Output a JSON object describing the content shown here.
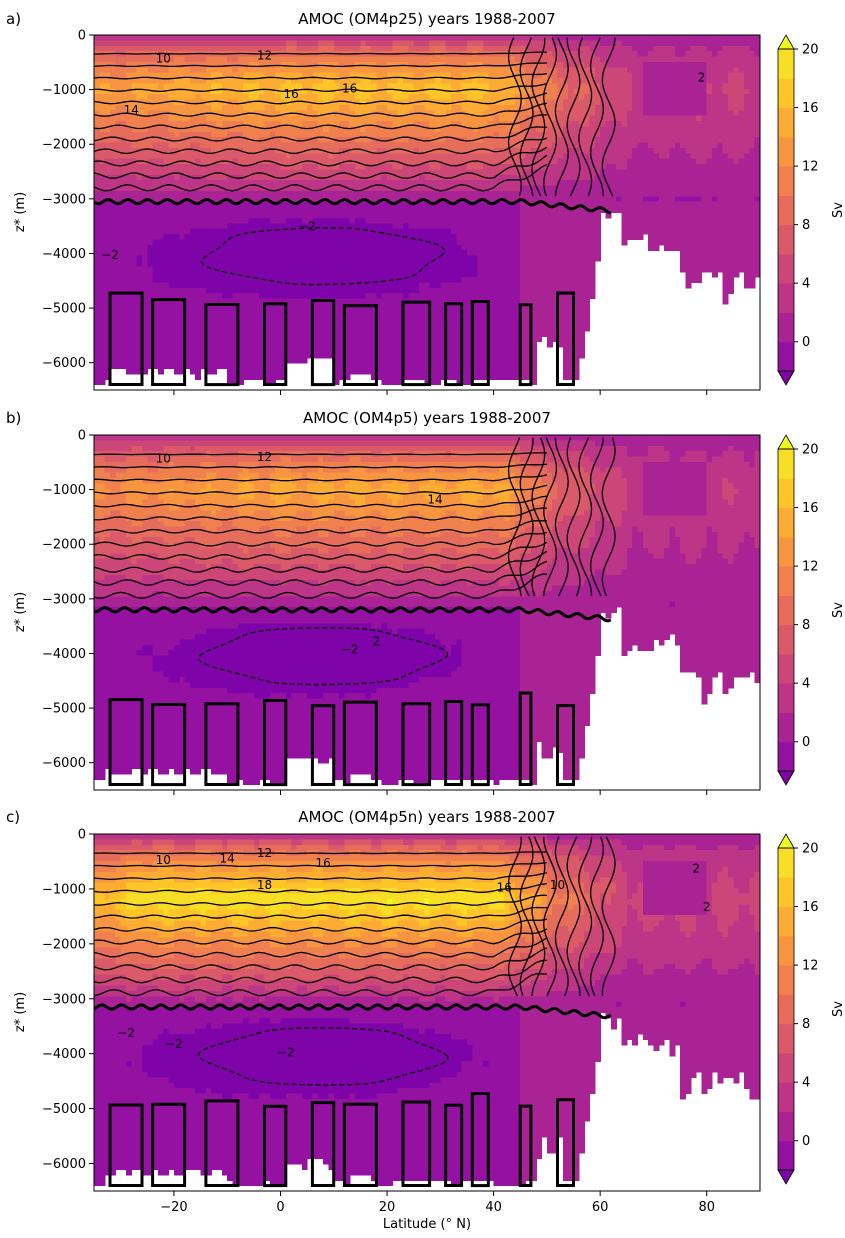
{
  "figure": {
    "colormap": [
      "#7e03a8",
      "#9511a1",
      "#aa2395",
      "#bc3587",
      "#cc4778",
      "#da5a6a",
      "#e66c5c",
      "#f0804e",
      "#f89540",
      "#fdac33",
      "#fdc527",
      "#f8df25",
      "#f0f921"
    ],
    "levels": [
      -2,
      0,
      2,
      4,
      6,
      8,
      10,
      12,
      14,
      16,
      18,
      20
    ],
    "colorbar": {
      "label": "Sv",
      "ticks": [
        "0",
        "4",
        "8",
        "12",
        "16",
        "20"
      ],
      "tick_values": [
        0,
        4,
        8,
        12,
        16,
        20
      ]
    }
  },
  "chart_data": [
    {
      "type": "heatmap",
      "panel": "a)",
      "title": "AMOC (OM4p25) years 1988-2007",
      "xlabel": "",
      "ylabel": "z* (m)",
      "xlim": [
        -35,
        90
      ],
      "ylim": [
        -6500,
        0
      ],
      "xticks": [
        -20,
        0,
        20,
        40,
        60,
        80
      ],
      "yticks": [
        0,
        -1000,
        -2000,
        -3000,
        -4000,
        -5000,
        -6000
      ],
      "ytick_labels": [
        "0",
        "−1000",
        "−2000",
        "−3000",
        "−4000",
        "−5000",
        "−6000"
      ],
      "core": {
        "max_sv": 17,
        "lat": [
          0,
          40
        ],
        "depth": -1000
      },
      "nadw_base_depth": -3050,
      "aabw_min_sv": -3,
      "contour_labels": [
        {
          "text": "10",
          "x": -22,
          "y": -500
        },
        {
          "text": "12",
          "x": -3,
          "y": -450
        },
        {
          "text": "14",
          "x": -28,
          "y": -1450
        },
        {
          "text": "16",
          "x": 2,
          "y": -1150
        },
        {
          "text": "16",
          "x": 13,
          "y": -1050
        },
        {
          "text": "−2",
          "x": -32,
          "y": -4100
        },
        {
          "text": "−2",
          "x": 5,
          "y": -3580
        },
        {
          "text": "2",
          "x": 79,
          "y": -850
        }
      ]
    },
    {
      "type": "heatmap",
      "panel": "b)",
      "title": "AMOC (OM4p5) years 1988-2007",
      "xlabel": "",
      "ylabel": "z* (m)",
      "xlim": [
        -35,
        90
      ],
      "ylim": [
        -6500,
        0
      ],
      "xticks": [
        -20,
        0,
        20,
        40,
        60,
        80
      ],
      "yticks": [
        0,
        -1000,
        -2000,
        -3000,
        -4000,
        -5000,
        -6000
      ],
      "ytick_labels": [
        "0",
        "−1000",
        "−2000",
        "−3000",
        "−4000",
        "−5000",
        "−6000"
      ],
      "core": {
        "max_sv": 15,
        "lat": [
          0,
          42
        ],
        "depth": -1000
      },
      "nadw_base_depth": -3200,
      "aabw_min_sv": -2.5,
      "contour_labels": [
        {
          "text": "10",
          "x": -22,
          "y": -500
        },
        {
          "text": "12",
          "x": -3,
          "y": -480
        },
        {
          "text": "14",
          "x": 29,
          "y": -1250
        },
        {
          "text": "−2",
          "x": 13,
          "y": -4000
        },
        {
          "text": "2",
          "x": 18,
          "y": -3850
        }
      ]
    },
    {
      "type": "heatmap",
      "panel": "c)",
      "title": "AMOC (OM4p5n) years 1988-2007",
      "xlabel": "Latitude (° N)",
      "ylabel": "z* (m)",
      "xlim": [
        -35,
        90
      ],
      "ylim": [
        -6500,
        0
      ],
      "xticks": [
        -20,
        0,
        20,
        40,
        60,
        80
      ],
      "yticks": [
        0,
        -1000,
        -2000,
        -3000,
        -4000,
        -5000,
        -6000
      ],
      "ytick_labels": [
        "0",
        "−1000",
        "−2000",
        "−3000",
        "−4000",
        "−5000",
        "−6000"
      ],
      "core": {
        "max_sv": 19.5,
        "lat": [
          -25,
          40
        ],
        "depth": -1200
      },
      "nadw_base_depth": -3150,
      "aabw_min_sv": -3,
      "contour_labels": [
        {
          "text": "10",
          "x": -22,
          "y": -550
        },
        {
          "text": "14",
          "x": -10,
          "y": -520
        },
        {
          "text": "12",
          "x": -3,
          "y": -420
        },
        {
          "text": "16",
          "x": 8,
          "y": -600
        },
        {
          "text": "18",
          "x": -3,
          "y": -1000
        },
        {
          "text": "16",
          "x": 42,
          "y": -1050
        },
        {
          "text": "10",
          "x": 52,
          "y": -1000
        },
        {
          "text": "−2",
          "x": -29,
          "y": -3700
        },
        {
          "text": "−2",
          "x": -20,
          "y": -3900
        },
        {
          "text": "−2",
          "x": 1,
          "y": -4050
        },
        {
          "text": "2",
          "x": 78,
          "y": -700
        },
        {
          "text": "2",
          "x": 80,
          "y": -1400
        }
      ]
    }
  ]
}
